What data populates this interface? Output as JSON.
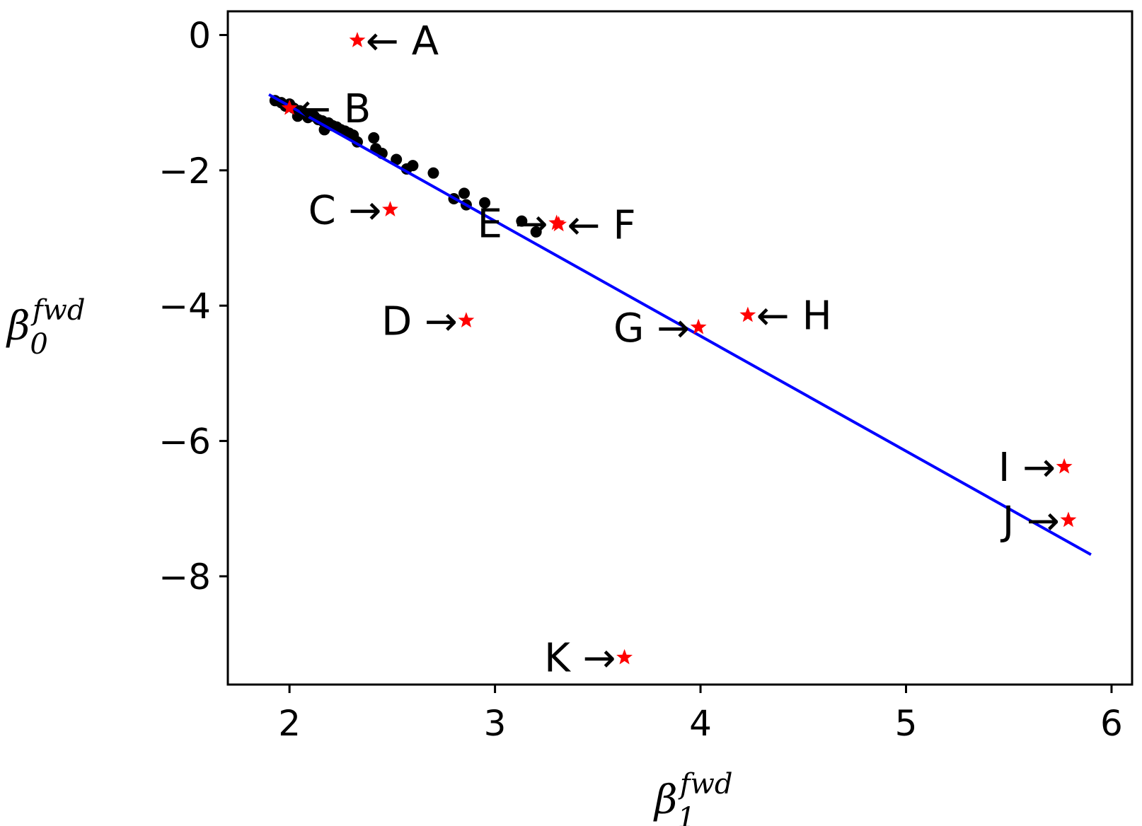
{
  "chart_data": {
    "type": "scatter",
    "title": "",
    "xlabel": {
      "base": "β",
      "sub": "1",
      "sup": "fwd"
    },
    "ylabel": {
      "base": "β",
      "sub": "0",
      "sup": "fwd"
    },
    "xlim": [
      1.7,
      6.1
    ],
    "ylim": [
      -9.6,
      0.35
    ],
    "xticks": [
      2,
      3,
      4,
      5,
      6
    ],
    "yticks": [
      0,
      -2,
      -4,
      -6,
      -8
    ],
    "ytick_labels": [
      "0",
      "−2",
      "−4",
      "−6",
      "−8"
    ],
    "grid": false,
    "colors": {
      "points": "#000000",
      "stars": "#ff0000",
      "line": "#0000ff",
      "annotations": "#000000"
    },
    "series": [
      {
        "kind": "points",
        "x": [
          1.93,
          1.96,
          1.98,
          2.0,
          2.02,
          2.04,
          2.05,
          2.07,
          2.09,
          2.1,
          2.12,
          2.14,
          2.16,
          2.17,
          2.19,
          2.21,
          2.23,
          2.25,
          2.27,
          2.29,
          2.31,
          2.33,
          2.41,
          2.42,
          2.45,
          2.52,
          2.57,
          2.6,
          2.7,
          2.8,
          2.85,
          2.86,
          2.95,
          3.13,
          3.2
        ],
        "y": [
          -0.97,
          -1.0,
          -1.05,
          -1.02,
          -1.08,
          -1.2,
          -1.12,
          -1.15,
          -1.22,
          -1.18,
          -1.2,
          -1.25,
          -1.27,
          -1.4,
          -1.3,
          -1.34,
          -1.36,
          -1.4,
          -1.42,
          -1.45,
          -1.48,
          -1.58,
          -1.52,
          -1.68,
          -1.75,
          -1.84,
          -1.98,
          -1.93,
          -2.04,
          -2.42,
          -2.34,
          -2.51,
          -2.48,
          -2.75,
          -2.91
        ]
      },
      {
        "kind": "outliers",
        "points": [
          {
            "label": "A",
            "x": 2.33,
            "y": -0.08,
            "arrow": "←",
            "side": "right"
          },
          {
            "label": "B",
            "x": 2.0,
            "y": -1.08,
            "arrow": "←",
            "side": "right"
          },
          {
            "label": "C",
            "x": 2.49,
            "y": -2.58,
            "arrow": "→",
            "side": "left"
          },
          {
            "label": "D",
            "x": 2.86,
            "y": -4.22,
            "arrow": "→",
            "side": "left"
          },
          {
            "label": "E",
            "x": 3.3,
            "y": -2.78,
            "arrow": "→",
            "side": "left"
          },
          {
            "label": "F",
            "x": 3.31,
            "y": -2.8,
            "arrow": "←",
            "side": "right"
          },
          {
            "label": "G",
            "x": 3.99,
            "y": -4.32,
            "arrow": "→",
            "side": "left"
          },
          {
            "label": "H",
            "x": 4.23,
            "y": -4.14,
            "arrow": "←",
            "side": "right"
          },
          {
            "label": "I",
            "x": 5.77,
            "y": -6.38,
            "arrow": "→",
            "side": "left"
          },
          {
            "label": "J",
            "x": 5.79,
            "y": -7.17,
            "arrow": "→",
            "side": "left"
          },
          {
            "label": "K",
            "x": 3.63,
            "y": -9.2,
            "arrow": "→",
            "side": "left"
          }
        ]
      },
      {
        "kind": "fit_line",
        "x": [
          1.9,
          5.9
        ],
        "y": [
          -0.88,
          -7.68
        ]
      }
    ]
  }
}
